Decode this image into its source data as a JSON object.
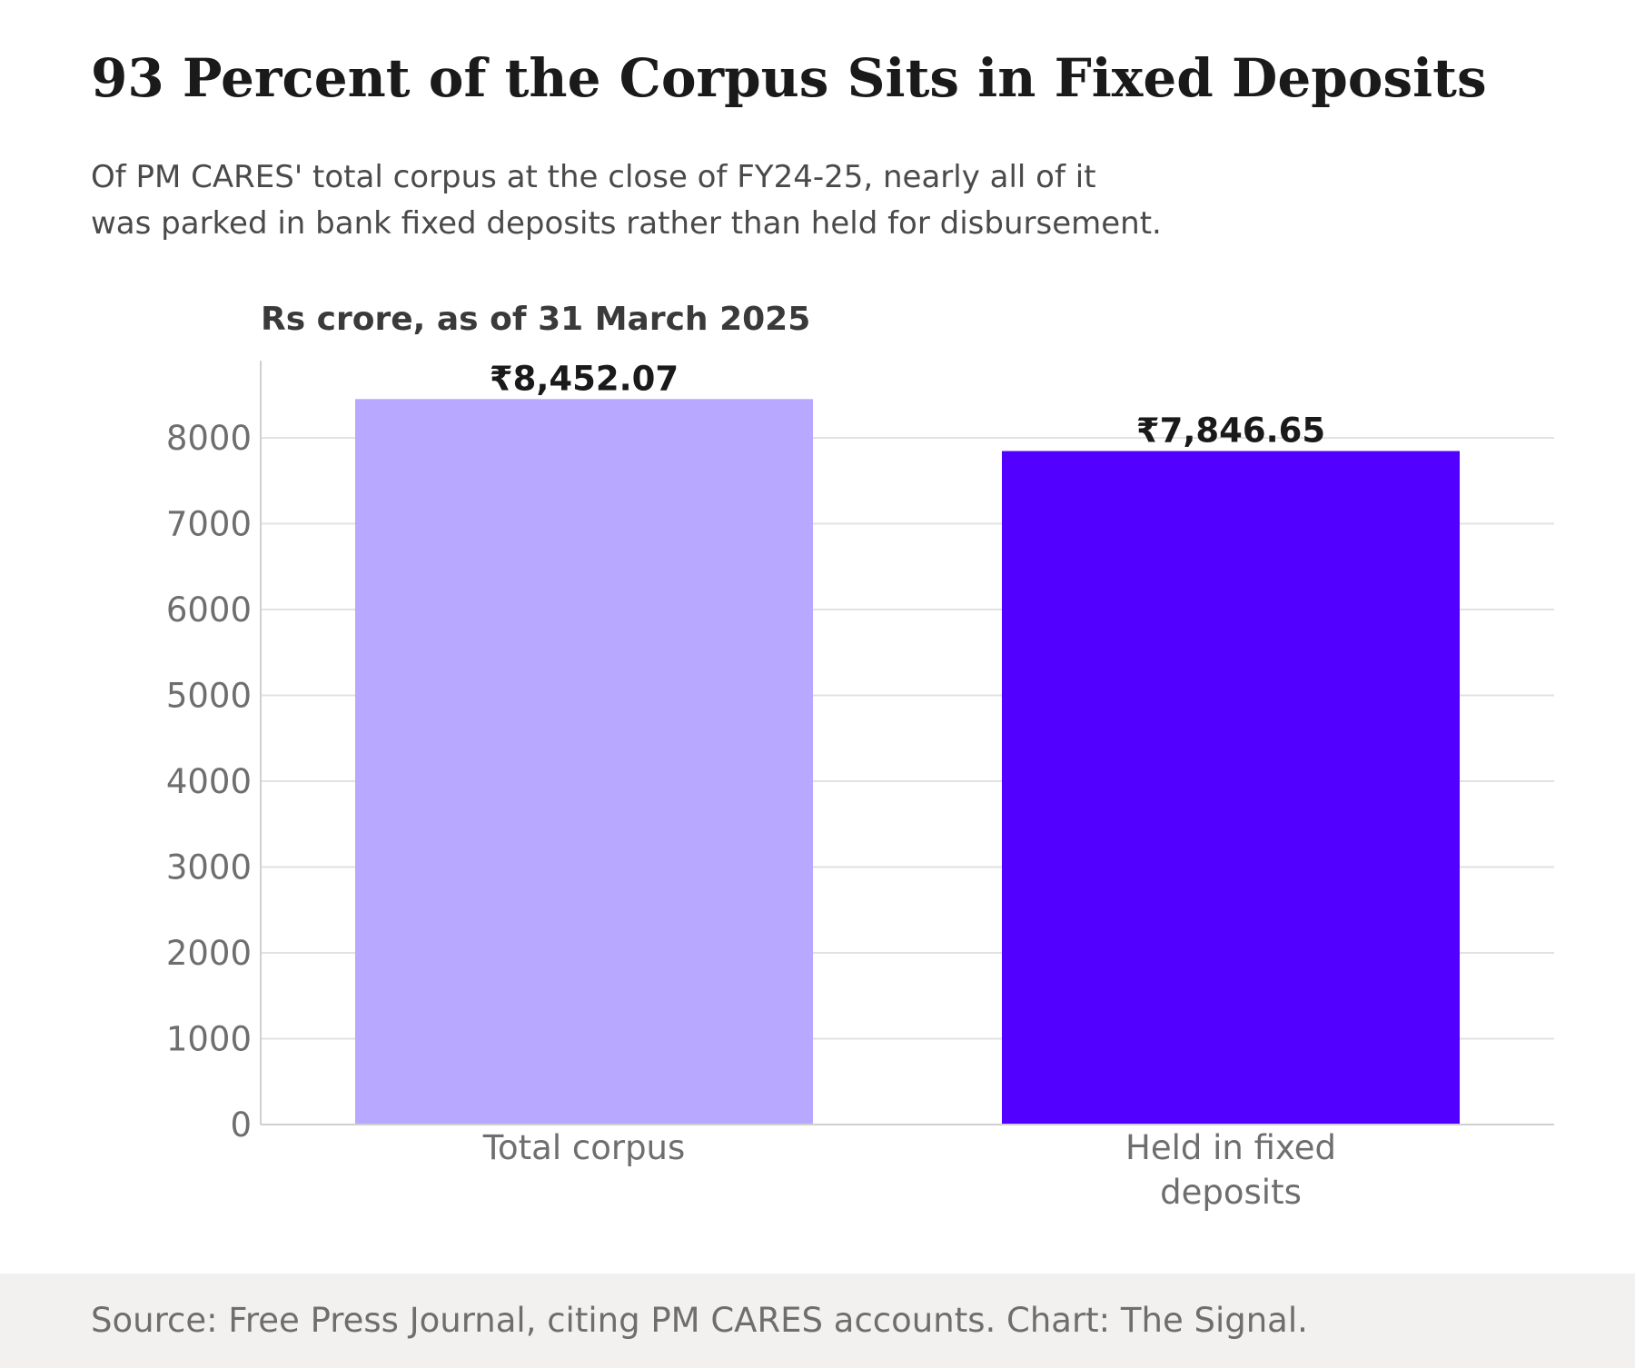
{
  "header": {
    "title": "93 Percent of the Corpus Sits in Fixed Deposits",
    "subtitle_lines": [
      "Of PM CARES' total corpus at the close of FY24-25, nearly all of it",
      "was parked in bank fixed deposits rather than held for disbursement."
    ]
  },
  "chart_data": {
    "type": "bar",
    "title": "Rs crore, as of 31 March 2025",
    "xlabel": "",
    "ylabel": "",
    "categories": [
      [
        "Total corpus"
      ],
      [
        "Held in fixed",
        "deposits"
      ]
    ],
    "values": [
      8452.07,
      7846.65
    ],
    "value_labels": [
      "₹8,452.07",
      "₹7,846.65"
    ],
    "colors": [
      "#b8a8ff",
      "#5200ff"
    ],
    "ylim": [
      0,
      8900
    ],
    "yticks": [
      0,
      1000,
      2000,
      3000,
      4000,
      5000,
      6000,
      7000,
      8000
    ],
    "grid": true,
    "legend": "none"
  },
  "footer": {
    "source": "Source: Free Press Journal, citing PM CARES accounts. Chart: The Signal."
  }
}
